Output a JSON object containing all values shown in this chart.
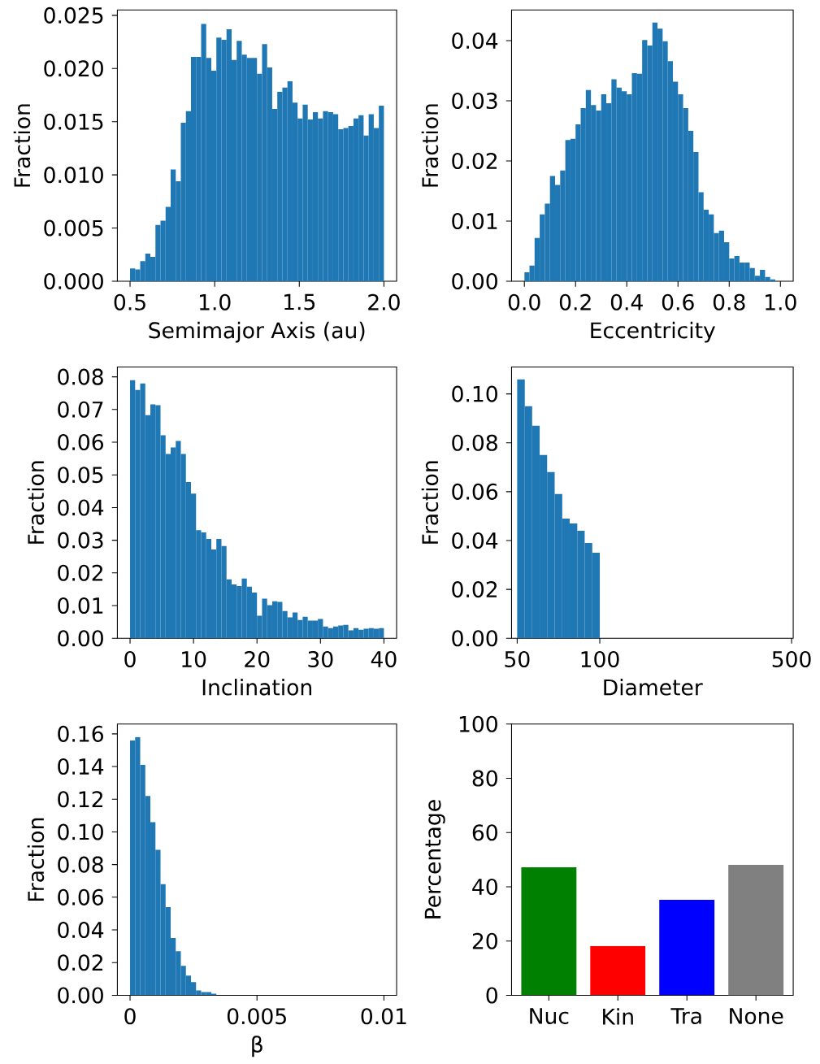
{
  "chart_data": [
    {
      "type": "histogram",
      "xlabel": "Semimajor Axis (au)",
      "ylabel": "Fraction",
      "color": "#1f77b4",
      "bins": [
        0.5,
        0.53,
        0.56,
        0.59,
        0.62,
        0.65,
        0.68,
        0.71,
        0.74,
        0.77,
        0.8,
        0.83,
        0.86,
        0.89,
        0.92,
        0.95,
        0.98,
        1.01,
        1.04,
        1.07,
        1.1,
        1.13,
        1.16,
        1.19,
        1.22,
        1.25,
        1.28,
        1.31,
        1.34,
        1.37,
        1.4,
        1.43,
        1.46,
        1.49,
        1.52,
        1.55,
        1.58,
        1.61,
        1.64,
        1.67,
        1.7,
        1.73,
        1.76,
        1.79,
        1.82,
        1.85,
        1.88,
        1.91,
        1.94,
        1.97,
        2.0
      ],
      "values": [
        0.0012,
        0.0011,
        0.0019,
        0.0026,
        0.0023,
        0.0053,
        0.0057,
        0.007,
        0.0105,
        0.0094,
        0.0149,
        0.016,
        0.0211,
        0.0211,
        0.0242,
        0.021,
        0.0198,
        0.0229,
        0.0227,
        0.0237,
        0.0208,
        0.0226,
        0.0213,
        0.021,
        0.021,
        0.0195,
        0.0223,
        0.0201,
        0.0162,
        0.0178,
        0.0182,
        0.0188,
        0.0168,
        0.0153,
        0.0166,
        0.0152,
        0.0159,
        0.0153,
        0.016,
        0.0159,
        0.0157,
        0.0143,
        0.0144,
        0.0146,
        0.0153,
        0.0156,
        0.0137,
        0.0157,
        0.0144,
        0.0165
      ],
      "xlim": [
        0.425,
        2.075
      ],
      "ylim": [
        0,
        0.0255
      ],
      "xticks": [
        0.5,
        {
          "value": 1,
          "label": "1.0"
        },
        1.5,
        {
          "value": 2,
          "label": "2.0"
        }
      ],
      "yticks": [
        {
          "value": 0,
          "label": "0.000"
        },
        {
          "value": 0.005,
          "label": "0.005"
        },
        {
          "value": 0.01,
          "label": "0.010"
        },
        {
          "value": 0.015,
          "label": "0.015"
        },
        {
          "value": 0.02,
          "label": "0.020"
        },
        {
          "value": 0.025,
          "label": "0.025"
        }
      ]
    },
    {
      "type": "histogram",
      "xlabel": "Eccentricity",
      "ylabel": "Fraction",
      "color": "#1f77b4",
      "bins": [
        0,
        0.02,
        0.04,
        0.06,
        0.08,
        0.1,
        0.12,
        0.14,
        0.16,
        0.18,
        0.2,
        0.22,
        0.24,
        0.26,
        0.28,
        0.3,
        0.32,
        0.34,
        0.36,
        0.38,
        0.4,
        0.42,
        0.44,
        0.46,
        0.48,
        0.5,
        0.52,
        0.54,
        0.56,
        0.58,
        0.6,
        0.62,
        0.64,
        0.66,
        0.68,
        0.7,
        0.72,
        0.74,
        0.76,
        0.78,
        0.8,
        0.82,
        0.84,
        0.86,
        0.88,
        0.9,
        0.92,
        0.94,
        0.96,
        0.98,
        1.0
      ],
      "values": [
        0.0015,
        0.0026,
        0.0072,
        0.0111,
        0.0129,
        0.0175,
        0.016,
        0.0184,
        0.0235,
        0.0237,
        0.0261,
        0.0288,
        0.0318,
        0.0293,
        0.0284,
        0.0311,
        0.0296,
        0.0336,
        0.0322,
        0.0316,
        0.0311,
        0.0346,
        0.0345,
        0.0401,
        0.0392,
        0.043,
        0.042,
        0.0399,
        0.0366,
        0.0332,
        0.0311,
        0.0288,
        0.025,
        0.0215,
        0.0148,
        0.0119,
        0.0111,
        0.008,
        0.0084,
        0.0065,
        0.0038,
        0.0042,
        0.0031,
        0.0031,
        0.0022,
        0.0009,
        0.0019,
        0.0007,
        0.0003,
        0
      ],
      "xlim": [
        -0.05,
        1.05
      ],
      "ylim": [
        0,
        0.0451
      ],
      "xticks": [
        {
          "value": 0,
          "label": "0.0"
        },
        0.2,
        0.4,
        0.6,
        0.8,
        {
          "value": 1,
          "label": "1.0"
        }
      ],
      "yticks": [
        {
          "value": 0,
          "label": "0.00"
        },
        0.01,
        0.02,
        0.03,
        0.04
      ]
    },
    {
      "type": "histogram",
      "xlabel": "Inclination",
      "ylabel": "Fraction",
      "color": "#1f77b4",
      "bins": [
        0,
        0.8,
        1.6,
        2.4,
        3.2,
        4,
        4.8,
        5.6,
        6.4,
        7.2,
        8,
        8.8,
        9.6,
        10.4,
        11.2,
        12,
        12.8,
        13.6,
        14.4,
        15.2,
        16,
        16.8,
        17.6,
        18.4,
        19.2,
        20,
        20.8,
        21.6,
        22.4,
        23.2,
        24,
        24.8,
        25.6,
        26.4,
        27.2,
        28,
        28.8,
        29.6,
        30.4,
        31.2,
        32,
        32.8,
        33.6,
        34.4,
        35.2,
        36,
        36.8,
        37.6,
        38.4,
        39.2,
        40
      ],
      "values": [
        0.079,
        0.076,
        0.078,
        0.0683,
        0.0716,
        0.0713,
        0.0621,
        0.0564,
        0.0584,
        0.0604,
        0.0564,
        0.0478,
        0.0443,
        0.0331,
        0.0324,
        0.0304,
        0.0272,
        0.0304,
        0.0282,
        0.018,
        0.0165,
        0.016,
        0.0183,
        0.0158,
        0.014,
        0.0069,
        0.0121,
        0.0101,
        0.0113,
        0.0111,
        0.0083,
        0.0064,
        0.0079,
        0.0056,
        0.0066,
        0.0054,
        0.0054,
        0.0059,
        0.0036,
        0.0031,
        0.0036,
        0.0039,
        0.0041,
        0.0024,
        0.0031,
        0.0026,
        0.0029,
        0.0031,
        0.0029,
        0.0031
      ],
      "xlim": [
        -2,
        42
      ],
      "ylim": [
        0,
        0.083
      ],
      "xticks": [
        0,
        10,
        20,
        30,
        40
      ],
      "yticks": [
        {
          "value": 0,
          "label": "0.00"
        },
        0.01,
        0.02,
        0.03,
        0.04,
        0.05,
        0.06,
        0.07,
        0.08
      ]
    },
    {
      "type": "histogram",
      "xlabel": "Diameter",
      "ylabel": "Fraction",
      "color": "#1f77b4",
      "log": "x",
      "bins": [
        50,
        53.3,
        56.7,
        60.4,
        64.3,
        68.5,
        73.0,
        77.7,
        82.8,
        88.1,
        93.9,
        100
      ],
      "values": [
        0.106,
        0.095,
        0.087,
        0.075,
        0.068,
        0.059,
        0.049,
        0.047,
        0.044,
        0.039,
        0.035
      ],
      "xlim": [
        47.7,
        507
      ],
      "ylim": [
        0,
        0.111
      ],
      "xticks": [
        50,
        100,
        500
      ],
      "yticks": [
        {
          "value": 0,
          "label": "0.00"
        },
        0.02,
        0.04,
        0.06,
        0.08,
        {
          "value": 0.1,
          "label": "0.10"
        }
      ]
    },
    {
      "type": "histogram",
      "xlabel": "β",
      "ylabel": "Fraction",
      "color": "#1f77b4",
      "bins": [
        0,
        0.0002,
        0.0004,
        0.0006,
        0.0008,
        0.001,
        0.0012,
        0.0014,
        0.0016,
        0.0018,
        0.002,
        0.0022,
        0.0024,
        0.0026,
        0.0028,
        0.003,
        0.0032,
        0.0034,
        0.0036,
        0.0038,
        0.004,
        0.0042,
        0.0044,
        0.0046,
        0.0048,
        0.005,
        0.0052,
        0.0054,
        0.0056,
        0.0058,
        0.006,
        0.0062,
        0.0064,
        0.0066,
        0.0068,
        0.007,
        0.0072,
        0.0074,
        0.0076,
        0.0078,
        0.008,
        0.0082,
        0.0084,
        0.0086,
        0.0088,
        0.009,
        0.0092,
        0.0094,
        0.0096,
        0.0098,
        0.01
      ],
      "values": [
        0.156,
        0.158,
        0.141,
        0.122,
        0.106,
        0.089,
        0.068,
        0.054,
        0.035,
        0.027,
        0.018,
        0.012,
        0.008,
        0.003,
        0.002,
        0.002,
        0.001,
        null,
        null,
        0,
        0,
        0,
        0,
        0,
        0,
        0,
        0,
        0,
        0,
        0,
        0,
        0,
        0,
        0,
        0,
        0,
        0,
        0,
        0,
        0,
        0,
        0,
        0,
        0,
        0,
        0,
        0,
        0,
        0,
        0
      ],
      "xlim": [
        -0.0005,
        0.0105
      ],
      "ylim": [
        0,
        0.166
      ],
      "xticks": [
        0,
        0.005,
        0.01
      ],
      "yticks": [
        {
          "value": 0,
          "label": "0.00"
        },
        0.02,
        0.04,
        0.06,
        0.08,
        {
          "value": 0.1,
          "label": "0.10"
        },
        0.12,
        0.14,
        0.16
      ]
    },
    {
      "type": "bar",
      "ylabel": "Percentage",
      "categories": [
        "Nuc",
        "Kin",
        "Tra",
        "None"
      ],
      "values": [
        47.2,
        18.2,
        35.2,
        48.1
      ],
      "colors": [
        "#008000",
        "#ff0000",
        "#0000ff",
        "#808080"
      ],
      "ylim": [
        0,
        100
      ],
      "yticks": [
        0,
        20,
        40,
        60,
        80,
        100
      ]
    }
  ]
}
